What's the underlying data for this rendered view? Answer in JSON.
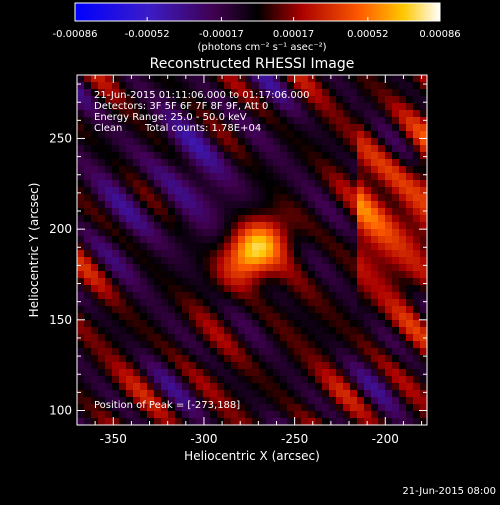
{
  "colorbar": {
    "tick_labels": [
      "-0.00086",
      "-0.00052",
      "-0.00017",
      "0.00017",
      "0.00052",
      "0.00086"
    ],
    "units": "(photons cm⁻² s⁻¹ asec⁻²)",
    "range": [
      -0.00086,
      0.00086
    ]
  },
  "image_text": {
    "time_range": "21-Jun-2015 01:11:06.000 to 01:17:06.000",
    "detectors": "Detectors: 3F 5F 6F 7F 8F 9F, Att 0",
    "energy_range": "Energy Range: 25.0 - 50.0 keV",
    "clean": "Clean",
    "total_counts": "Total counts: 1.78E+04",
    "peak_position": "Position of Peak = [-273,188]"
  },
  "footer": {
    "timestamp": "21-Jun-2015 08:00"
  },
  "chart_data": {
    "type": "heatmap",
    "title": "Reconstructed RHESSI Image",
    "xlabel": "Heliocentric X (arcsec)",
    "ylabel": "Heliocentric Y (arcsec)",
    "xlim": [
      -370,
      -177
    ],
    "ylim": [
      92,
      285
    ],
    "x_ticks": [
      -350,
      -300,
      -250,
      -200
    ],
    "y_ticks": [
      100,
      150,
      200,
      250
    ],
    "x_tick_labels": [
      "-350",
      "-300",
      "-250",
      "-200"
    ],
    "y_tick_labels": [
      "100",
      "150",
      "200",
      "250"
    ],
    "colormap": "blue-purple-black-red-orange-yellow-white",
    "peak": [
      -273,
      188
    ],
    "grid": false
  }
}
